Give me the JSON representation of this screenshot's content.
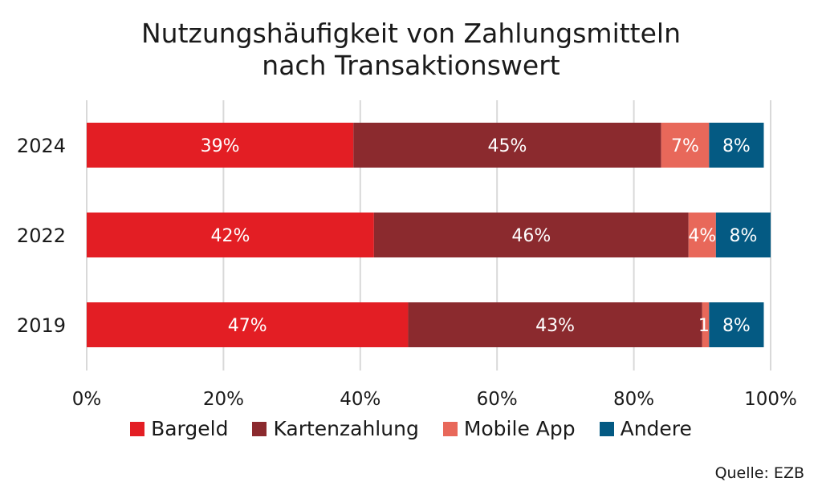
{
  "chart_data": {
    "type": "bar",
    "orientation": "horizontal",
    "stacked": true,
    "title_lines": [
      "Nutzungshäufigkeit von Zahlungsmitteln",
      "nach Transaktionswert"
    ],
    "categories": [
      "2024",
      "2022",
      "2019"
    ],
    "series": [
      {
        "name": "Bargeld",
        "color": "#e31e24",
        "values": [
          39,
          42,
          47
        ],
        "labels": [
          "39%",
          "42%",
          "47%"
        ]
      },
      {
        "name": "Kartenzahlung",
        "color": "#8b2a2e",
        "values": [
          45,
          46,
          43
        ],
        "labels": [
          "45%",
          "46%",
          "43%"
        ]
      },
      {
        "name": "Mobile App",
        "color": "#e8685a",
        "values": [
          7,
          4,
          1
        ],
        "labels": [
          "7%",
          "4%",
          "1%"
        ]
      },
      {
        "name": "Andere",
        "color": "#045a83",
        "values": [
          8,
          8,
          8
        ],
        "labels": [
          "8%",
          "8%",
          "8%"
        ]
      }
    ],
    "xlim": [
      0,
      100
    ],
    "xticks": [
      "0%",
      "20%",
      "40%",
      "60%",
      "80%",
      "100%"
    ],
    "grid": true,
    "legend_position": "bottom"
  },
  "source": "Quelle: EZB"
}
